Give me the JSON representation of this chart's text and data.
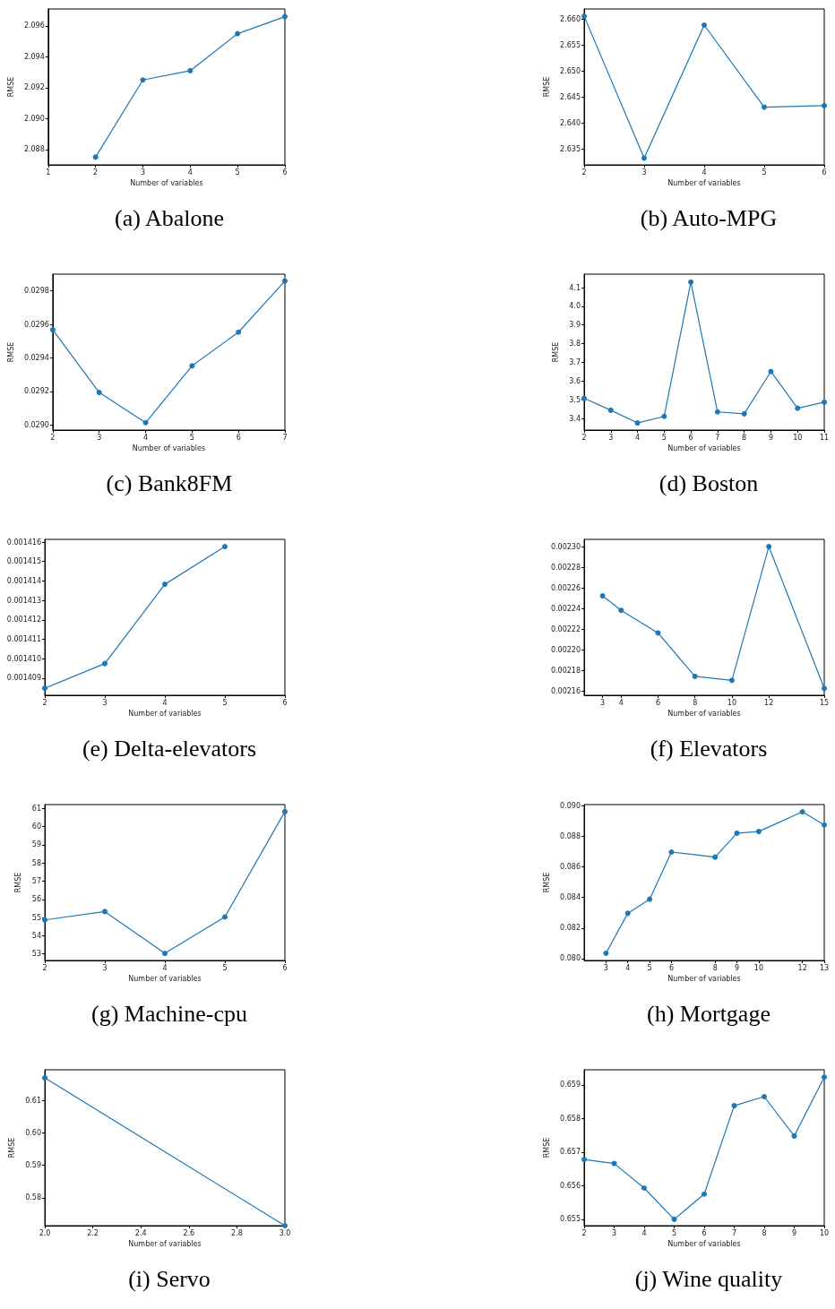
{
  "chart_data": [
    {
      "type": "line",
      "title": "(a) Abalone",
      "xlabel": "Number of variables",
      "ylabel": "RMSE",
      "color": "#1f77b4",
      "marker": "circle",
      "x": [
        2,
        3,
        4,
        5,
        6
      ],
      "values": [
        2.0875,
        2.0925,
        2.0931,
        2.0955,
        2.0966
      ],
      "xlim": [
        1,
        6
      ],
      "xticks": [
        1,
        2,
        3,
        4,
        5,
        6
      ],
      "ylim": [
        2.087,
        2.0971
      ],
      "yticks": [
        {
          "value": 2.088,
          "label": "2.088"
        },
        {
          "value": 2.09,
          "label": "2.090"
        },
        {
          "value": 2.092,
          "label": "2.092"
        },
        {
          "value": 2.094,
          "label": "2.094"
        },
        {
          "value": 2.096,
          "label": "2.096"
        }
      ]
    },
    {
      "type": "line",
      "title": "(b) Auto-MPG",
      "xlabel": "Number of variables",
      "ylabel": "RMSE",
      "color": "#1f77b4",
      "marker": "circle",
      "x": [
        2,
        3,
        4,
        5,
        6
      ],
      "values": [
        2.6605,
        2.6332,
        2.6588,
        2.643,
        2.6433
      ],
      "xlim": [
        2,
        6
      ],
      "xticks": [
        2,
        3,
        4,
        5,
        6
      ],
      "ylim": [
        2.6319,
        2.6619
      ],
      "yticks": [
        {
          "value": 2.635,
          "label": "2.635"
        },
        {
          "value": 2.64,
          "label": "2.640"
        },
        {
          "value": 2.645,
          "label": "2.645"
        },
        {
          "value": 2.65,
          "label": "2.650"
        },
        {
          "value": 2.655,
          "label": "2.655"
        },
        {
          "value": 2.66,
          "label": "2.660"
        }
      ]
    },
    {
      "type": "line",
      "title": "(c) Bank8FM",
      "xlabel": "Number of variables",
      "ylabel": "RMSE",
      "color": "#1f77b4",
      "marker": "circle",
      "x": [
        2,
        3,
        4,
        5,
        6,
        7
      ],
      "values": [
        0.029568,
        0.029194,
        0.029014,
        0.029353,
        0.029554,
        0.029859
      ],
      "xlim": [
        2,
        7
      ],
      "xticks": [
        2,
        3,
        4,
        5,
        6,
        7
      ],
      "ylim": [
        0.02897,
        0.0299
      ],
      "yticks": [
        {
          "value": 0.029,
          "label": "0.0290"
        },
        {
          "value": 0.0292,
          "label": "0.0292"
        },
        {
          "value": 0.0294,
          "label": "0.0294"
        },
        {
          "value": 0.0296,
          "label": "0.0296"
        },
        {
          "value": 0.0298,
          "label": "0.0298"
        }
      ]
    },
    {
      "type": "line",
      "title": "(d) Boston",
      "xlabel": "Number of variables",
      "ylabel": "RMSE",
      "color": "#1f77b4",
      "marker": "circle",
      "x": [
        2,
        3,
        4,
        5,
        6,
        7,
        8,
        9,
        10,
        11
      ],
      "values": [
        3.508,
        3.444,
        3.376,
        3.411,
        4.13,
        3.435,
        3.425,
        3.651,
        3.455,
        3.487
      ],
      "xlim": [
        2,
        11
      ],
      "xticks": [
        2,
        3,
        4,
        5,
        6,
        7,
        8,
        9,
        10,
        11
      ],
      "ylim": [
        3.338,
        4.172
      ],
      "yticks": [
        3.4,
        3.5,
        3.6,
        3.7,
        3.8,
        3.9,
        {
          "value": 4.0,
          "label": "4.0"
        },
        4.1
      ]
    },
    {
      "type": "line",
      "title": "(e) Delta-elevators",
      "xlabel": "Number of variables",
      "color": "#1f77b4",
      "marker": "circle",
      "x": [
        2,
        3,
        4,
        5
      ],
      "values": [
        0.00140848,
        0.00140975,
        0.00141383,
        0.00141577
      ],
      "xlim": [
        2,
        6
      ],
      "xticks": [
        2,
        3,
        4,
        5,
        6
      ],
      "ylim": [
        0.00140812,
        0.00141614
      ],
      "yticks": [
        0.001409,
        {
          "value": 0.00141,
          "label": "0.001410"
        },
        0.001411,
        0.001412,
        0.001413,
        0.001414,
        0.001415,
        0.001416
      ]
    },
    {
      "type": "line",
      "title": "(f) Elevators",
      "xlabel": "Number of variables",
      "color": "#1f77b4",
      "marker": "circle",
      "x": [
        3,
        4,
        6,
        8,
        10,
        12,
        15
      ],
      "values": [
        0.0022527,
        0.0022387,
        0.0022167,
        0.0021745,
        0.0021707,
        0.0023006,
        0.0021629
      ],
      "xlim": [
        2,
        15
      ],
      "xticks": [
        3,
        4,
        6,
        8,
        10,
        12,
        15
      ],
      "ylim": [
        0.0021562,
        0.0023076
      ],
      "yticks": [
        {
          "value": 0.00216,
          "label": "0.00216"
        },
        {
          "value": 0.00218,
          "label": "0.00218"
        },
        {
          "value": 0.0022,
          "label": "0.00220"
        },
        {
          "value": 0.00222,
          "label": "0.00222"
        },
        {
          "value": 0.00224,
          "label": "0.00224"
        },
        {
          "value": 0.00226,
          "label": "0.00226"
        },
        {
          "value": 0.00228,
          "label": "0.00228"
        },
        {
          "value": 0.0023,
          "label": "0.00230"
        }
      ]
    },
    {
      "type": "line",
      "title": "(g) Machine-cpu",
      "xlabel": "Number of variables",
      "ylabel": "RMSE",
      "color": "#1f77b4",
      "marker": "circle",
      "x": [
        2,
        3,
        4,
        5,
        6
      ],
      "values": [
        54.87,
        55.33,
        53.03,
        55.03,
        60.82
      ],
      "xlim": [
        2,
        6
      ],
      "xticks": [
        2,
        3,
        4,
        5,
        6
      ],
      "ylim": [
        52.64,
        61.21
      ],
      "yticks": [
        53,
        54,
        55,
        56,
        57,
        58,
        59,
        60,
        61
      ]
    },
    {
      "type": "line",
      "title": "(h) Mortgage",
      "xlabel": "Number of variables",
      "ylabel": "RMSE",
      "color": "#1f77b4",
      "marker": "circle",
      "x": [
        3,
        4,
        5,
        6,
        8,
        9,
        10,
        12,
        13
      ],
      "values": [
        0.08035,
        0.08296,
        0.08388,
        0.08696,
        0.08663,
        0.08819,
        0.0883,
        0.08959,
        0.08873
      ],
      "xlim": [
        2,
        13
      ],
      "xticks": [
        3,
        4,
        5,
        6,
        8,
        9,
        10,
        12,
        13
      ],
      "ylim": [
        0.07988,
        0.09006
      ],
      "yticks": [
        {
          "value": 0.08,
          "label": "0.080"
        },
        {
          "value": 0.082,
          "label": "0.082"
        },
        {
          "value": 0.084,
          "label": "0.084"
        },
        {
          "value": 0.086,
          "label": "0.086"
        },
        {
          "value": 0.088,
          "label": "0.088"
        },
        {
          "value": 0.09,
          "label": "0.090"
        }
      ]
    },
    {
      "type": "line",
      "title": "(i) Servo",
      "xlabel": "Number of variables",
      "ylabel": "RMSE",
      "color": "#1f77b4",
      "marker": "circle",
      "x": [
        2,
        3
      ],
      "values": [
        0.6169,
        0.5714
      ],
      "xlim": [
        2,
        3
      ],
      "xticks": [
        {
          "value": 2,
          "label": "2.0"
        },
        2.2,
        2.4,
        2.6,
        2.8,
        {
          "value": 3,
          "label": "3.0"
        }
      ],
      "ylim": [
        0.5714,
        0.6194
      ],
      "yticks": [
        0.58,
        0.59,
        {
          "value": 0.6,
          "label": "0.60"
        },
        0.61
      ]
    },
    {
      "type": "line",
      "title": "(j) Wine quality",
      "xlabel": "Number of variables",
      "ylabel": "RMSE",
      "color": "#1f77b4",
      "marker": "circle",
      "x": [
        2,
        3,
        4,
        5,
        6,
        7,
        8,
        9,
        10
      ],
      "values": [
        0.65678,
        0.65666,
        0.65593,
        0.655,
        0.65575,
        0.65838,
        0.65865,
        0.65748,
        0.65923
      ],
      "xlim": [
        2,
        10
      ],
      "xticks": [
        2,
        3,
        4,
        5,
        6,
        7,
        8,
        9,
        10
      ],
      "ylim": [
        0.65481,
        0.65945
      ],
      "yticks": [
        0.655,
        0.656,
        0.657,
        0.658,
        0.659
      ]
    }
  ]
}
